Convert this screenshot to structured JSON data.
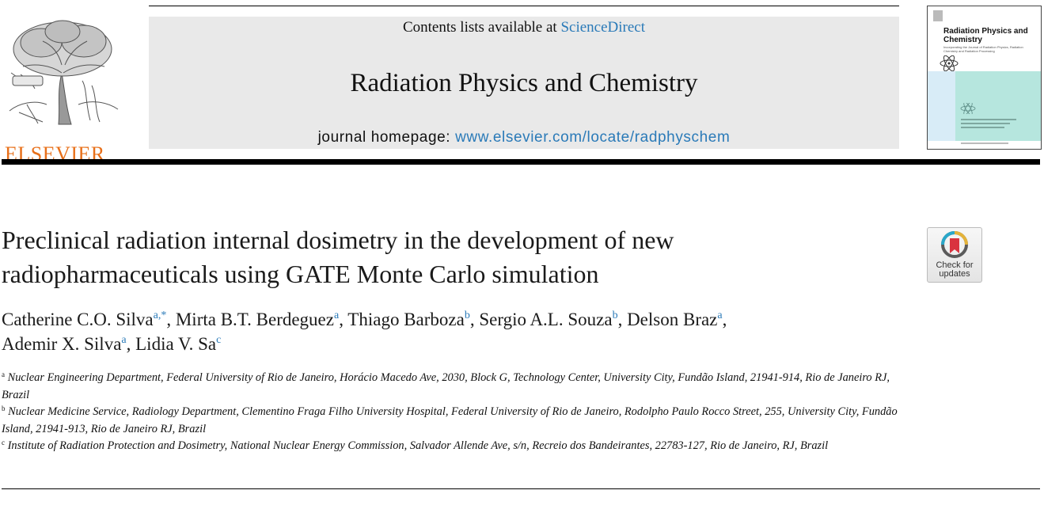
{
  "header": {
    "publisher_name": "ELSEVIER",
    "contents_prefix": "Contents lists available at ",
    "contents_link": "ScienceDirect",
    "journal_title": "Radiation Physics and Chemistry",
    "homepage_prefix": "journal homepage: ",
    "homepage_url": "www.elsevier.com/locate/radphyschem",
    "cover_title": "Radiation Physics and Chemistry",
    "cover_subtitle": "Incorporating the Journal of Radiation Physics, Radiation Chemistry and Radiation Processing"
  },
  "colors": {
    "link": "#2a7ab8",
    "publisher_orange": "#e8701a",
    "banner_gray": "#e9e9e9"
  },
  "badge": {
    "label_line1": "Check for",
    "label_line2": "updates"
  },
  "article": {
    "title_line1": "Preclinical radiation internal dosimetry in the development of new",
    "title_line2": "radiopharmaceuticals using GATE Monte Carlo simulation"
  },
  "authors": [
    {
      "name": "Catherine C.O. Silva",
      "sup": "a,*",
      "sep": ", "
    },
    {
      "name": "Mirta B.T. Berdeguez",
      "sup": "a",
      "sep": ", "
    },
    {
      "name": "Thiago Barboza",
      "sup": "b",
      "sep": ", "
    },
    {
      "name": "Sergio A.L. Souza",
      "sup": "b",
      "sep": ", "
    },
    {
      "name": "Delson Braz",
      "sup": "a",
      "sep": ","
    },
    {
      "name": "Ademir X. Silva",
      "sup": "a",
      "sep": ", "
    },
    {
      "name": "Lidia V. Sa",
      "sup": "c",
      "sep": ""
    }
  ],
  "affiliations": [
    {
      "key": "a",
      "text": "Nuclear Engineering Department, Federal University of Rio de Janeiro, Horácio Macedo Ave, 2030, Block G, Technology Center, University City, Fundão Island, 21941-914, Rio de Janeiro RJ, Brazil"
    },
    {
      "key": "b",
      "text": "Nuclear Medicine Service, Radiology Department, Clementino Fraga Filho University Hospital, Federal University of Rio de Janeiro, Rodolpho Paulo Rocco Street, 255, University City, Fundão Island, 21941-913, Rio de Janeiro RJ, Brazil"
    },
    {
      "key": "c",
      "text": "Institute of Radiation Protection and Dosimetry, National Nuclear Energy Commission, Salvador Allende Ave, s/n, Recreio dos Bandeirantes, 22783-127, Rio de Janeiro, RJ, Brazil"
    }
  ]
}
